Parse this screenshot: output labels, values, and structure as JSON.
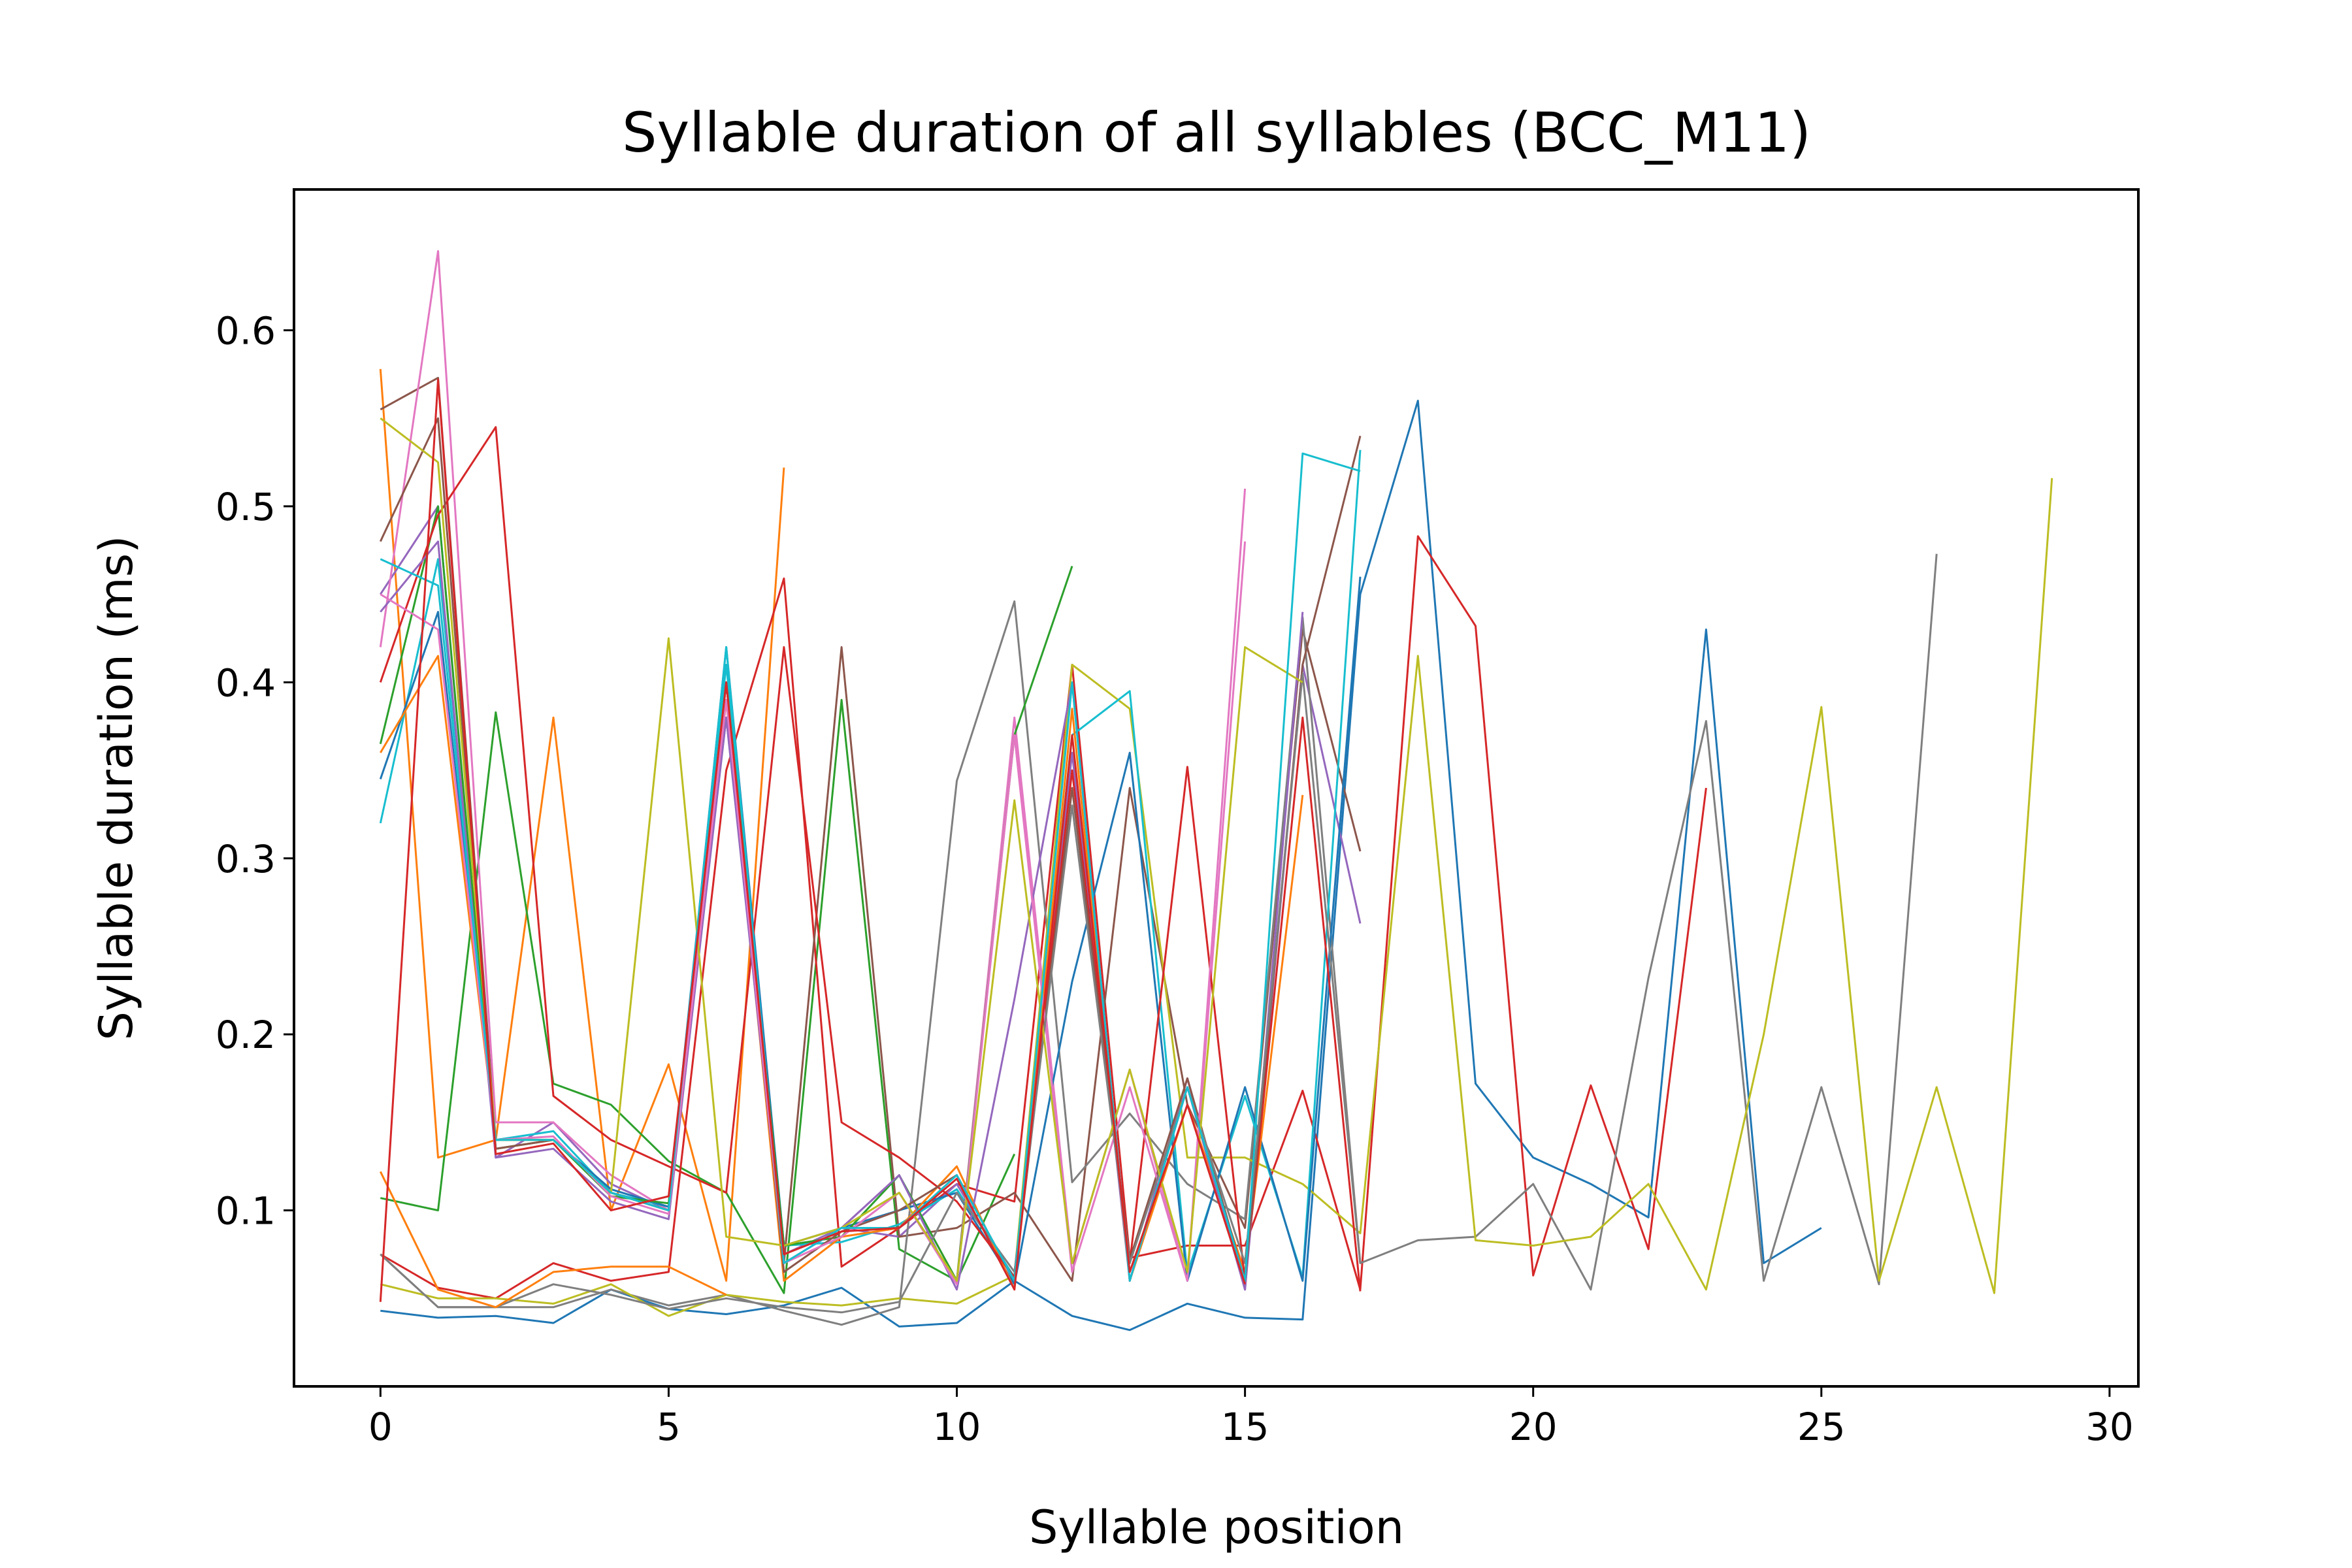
{
  "chart_data": {
    "type": "line",
    "title": "Syllable duration of all syllables (BCC_M11)",
    "xlabel": "Syllable position",
    "ylabel": "Syllable duration (ms)",
    "xlim": [
      -1.5,
      30.5
    ],
    "ylim": [
      0.0,
      0.68
    ],
    "xticks": [
      "0",
      "5",
      "10",
      "15",
      "20",
      "25",
      "30"
    ],
    "yticks": [
      "0.1",
      "0.2",
      "0.3",
      "0.4",
      "0.5",
      "0.6"
    ],
    "grid": false,
    "legend": "none",
    "series": [
      {
        "color": "#1f77b4",
        "values": [
          0.043,
          0.039,
          0.04,
          0.036,
          0.055,
          0.044,
          0.041,
          0.046,
          0.056,
          0.034,
          0.036,
          0.06,
          0.04,
          0.032,
          0.047,
          0.039,
          0.038,
          0.45,
          0.56,
          0.172,
          0.13,
          0.115,
          0.096,
          0.43,
          0.07,
          0.09
        ]
      },
      {
        "color": "#ff7f0e",
        "values": [
          0.578,
          0.13,
          0.14,
          0.38,
          0.1,
          0.183,
          0.06,
          0.522
        ]
      },
      {
        "color": "#2ca02c",
        "values": [
          0.107,
          0.1,
          0.383,
          0.172,
          0.16,
          0.128,
          0.11,
          0.053,
          0.39,
          0.078,
          0.06,
          0.132
        ]
      },
      {
        "color": "#d62728",
        "values": [
          0.075,
          0.056,
          0.05,
          0.07,
          0.06,
          0.065,
          0.35,
          0.459,
          0.068,
          0.09,
          0.115,
          0.105,
          0.41,
          0.073,
          0.08,
          0.08,
          0.168,
          0.055,
          0.483,
          0.432,
          0.063,
          0.171,
          0.078,
          0.34
        ]
      },
      {
        "color": "#9467bd",
        "values": [
          0.45,
          0.5,
          0.13,
          0.15,
          0.115,
          0.1,
          0.38,
          0.075,
          0.09,
          0.085,
          0.115,
          0.06,
          0.36,
          0.06,
          0.175,
          0.055,
          0.41,
          0.263
        ]
      },
      {
        "color": "#8c564b",
        "values": [
          0.555,
          0.573,
          0.14,
          0.14,
          0.11,
          0.1,
          0.4,
          0.07,
          0.42,
          0.085,
          0.09,
          0.11,
          0.06,
          0.34,
          0.16,
          0.09,
          0.43,
          0.304
        ]
      },
      {
        "color": "#e377c2",
        "values": [
          0.42,
          0.645,
          0.15,
          0.15,
          0.12,
          0.1,
          0.4,
          0.08,
          0.09,
          0.12,
          0.06,
          0.38,
          0.07,
          0.18,
          0.06,
          0.48
        ]
      },
      {
        "color": "#7f7f7f",
        "values": [
          0.075,
          0.045,
          0.045,
          0.045,
          0.055,
          0.046,
          0.052,
          0.043,
          0.035,
          0.045,
          0.344,
          0.446,
          0.116,
          0.155,
          0.115,
          0.095,
          0.437,
          0.07,
          0.083,
          0.085,
          0.115,
          0.055,
          0.232,
          0.378,
          0.06,
          0.17,
          0.058,
          0.473
        ]
      },
      {
        "color": "#bcbd22",
        "values": [
          0.058,
          0.05,
          0.05,
          0.047,
          0.058,
          0.04,
          0.052,
          0.048,
          0.046,
          0.05,
          0.047,
          0.063,
          0.41,
          0.385,
          0.13,
          0.13,
          0.115,
          0.087,
          0.415,
          0.083,
          0.08,
          0.085,
          0.115,
          0.055,
          0.2,
          0.386,
          0.06,
          0.17,
          0.053,
          0.516
        ]
      },
      {
        "color": "#17becf",
        "values": [
          0.32,
          0.47,
          0.14,
          0.145,
          0.11,
          0.102,
          0.41,
          0.08,
          0.082,
          0.092,
          0.112,
          0.062,
          0.37,
          0.395,
          0.064,
          0.165,
          0.062,
          0.532
        ]
      },
      {
        "color": "#1f77b4",
        "values": [
          0.345,
          0.44,
          0.14,
          0.14,
          0.112,
          0.102,
          0.42,
          0.08,
          0.09,
          0.1,
          0.11,
          0.058,
          0.23,
          0.36,
          0.06,
          0.17,
          0.06,
          0.46
        ]
      },
      {
        "color": "#ff7f0e",
        "values": [
          0.36,
          0.415,
          0.14,
          0.14,
          0.11,
          0.1,
          0.39,
          0.06,
          0.085,
          0.09,
          0.125,
          0.055,
          0.385,
          0.06,
          0.16,
          0.065,
          0.336
        ]
      },
      {
        "color": "#2ca02c",
        "values": [
          0.365,
          0.5,
          0.135,
          0.14,
          0.108,
          0.104,
          0.4,
          0.08,
          0.085,
          0.12,
          0.06,
          0.37,
          0.466
        ]
      },
      {
        "color": "#d62728",
        "values": [
          0.4,
          0.495,
          0.545,
          0.165,
          0.14,
          0.125,
          0.11,
          0.42,
          0.15,
          0.13,
          0.105,
          0.062,
          0.35,
          0.07,
          0.352,
          0.06,
          0.38,
          0.054
        ]
      },
      {
        "color": "#9467bd",
        "values": [
          0.44,
          0.48,
          0.13,
          0.135,
          0.105,
          0.095,
          0.38,
          0.07,
          0.09,
          0.12,
          0.055,
          0.22,
          0.4,
          0.06,
          0.17,
          0.055,
          0.44
        ]
      },
      {
        "color": "#8c564b",
        "values": [
          0.48,
          0.55,
          0.135,
          0.14,
          0.11,
          0.1,
          0.4,
          0.065,
          0.088,
          0.1,
          0.12,
          0.06,
          0.34,
          0.072,
          0.175,
          0.06,
          0.41,
          0.54
        ]
      },
      {
        "color": "#e377c2",
        "values": [
          0.45,
          0.43,
          0.14,
          0.142,
          0.108,
          0.098,
          0.39,
          0.07,
          0.085,
          0.11,
          0.058,
          0.37,
          0.065,
          0.17,
          0.06,
          0.51
        ]
      },
      {
        "color": "#7f7f7f",
        "values": [
          0.075,
          0.045,
          0.045,
          0.058,
          0.052,
          0.044,
          0.05,
          0.045,
          0.042,
          0.048,
          0.11,
          0.065,
          0.33,
          0.07,
          0.17,
          0.07,
          0.405,
          0.07
        ]
      },
      {
        "color": "#bcbd22",
        "values": [
          0.55,
          0.525,
          0.14,
          0.14,
          0.11,
          0.425,
          0.085,
          0.08,
          0.09,
          0.11,
          0.06,
          0.333,
          0.07,
          0.18,
          0.065,
          0.42,
          0.4
        ]
      },
      {
        "color": "#17becf",
        "values": [
          0.47,
          0.455,
          0.14,
          0.14,
          0.11,
          0.1,
          0.42,
          0.07,
          0.09,
          0.09,
          0.12,
          0.06,
          0.4,
          0.06,
          0.17,
          0.06,
          0.53,
          0.52
        ]
      },
      {
        "color": "#ff7f0e",
        "values": [
          0.122,
          0.055,
          0.045,
          0.065,
          0.068,
          0.068,
          0.052
        ]
      },
      {
        "color": "#d62728",
        "values": [
          0.048,
          0.572,
          0.132,
          0.138,
          0.1,
          0.108,
          0.4,
          0.075,
          0.088,
          0.09,
          0.118,
          0.055,
          0.37,
          0.065,
          0.16,
          0.058
        ]
      }
    ]
  }
}
